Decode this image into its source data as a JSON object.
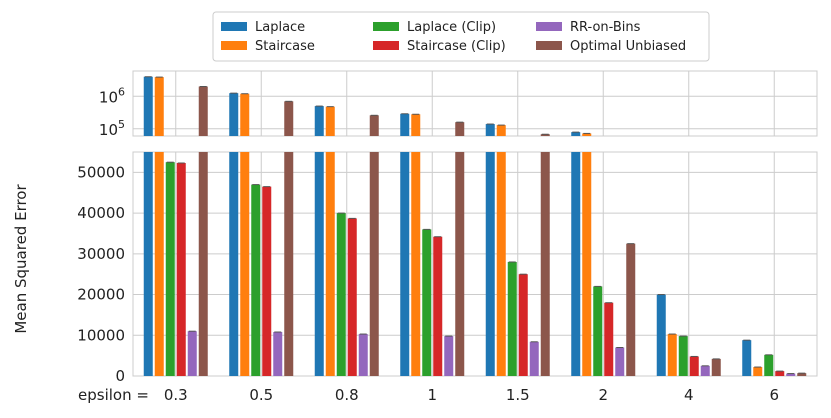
{
  "chart_data": {
    "type": "bar",
    "title": "",
    "xlabel_prefix": "epsilon =",
    "ylabel": "Mean Squared Error",
    "categories": [
      "0.3",
      "0.5",
      "0.8",
      "1",
      "1.5",
      "2",
      "4",
      "6"
    ],
    "series": [
      {
        "name": "Laplace",
        "color": "#1f77b4",
        "values": [
          4000000,
          1250000,
          500000,
          290000,
          140000,
          79000,
          20000,
          8800
        ]
      },
      {
        "name": "Staircase",
        "color": "#ff7f0e",
        "values": [
          3900000,
          1200000,
          480000,
          280000,
          130000,
          72000,
          10300,
          2200
        ]
      },
      {
        "name": "Laplace (Clip)",
        "color": "#2ca02c",
        "values": [
          52500,
          47000,
          40000,
          36000,
          28000,
          22000,
          9800,
          5200
        ]
      },
      {
        "name": "Staircase (Clip)",
        "color": "#d62728",
        "values": [
          52300,
          46500,
          38700,
          34200,
          25000,
          18000,
          4800,
          1200
        ]
      },
      {
        "name": "RR-on-Bins",
        "color": "#9467bd",
        "values": [
          11000,
          10800,
          10300,
          9800,
          8400,
          7000,
          2500,
          600
        ]
      },
      {
        "name": "Optimal Unbiased",
        "color": "#8c564b",
        "values": [
          2000000,
          700000,
          260000,
          160000,
          68000,
          32500,
          4200,
          700
        ]
      }
    ],
    "lower_axis": {
      "ylim": [
        0,
        55000
      ],
      "ticks": [
        0,
        10000,
        20000,
        30000,
        40000,
        50000
      ],
      "tick_labels": [
        "0",
        "10000",
        "20000",
        "30000",
        "40000",
        "50000"
      ]
    },
    "upper_axis": {
      "scale": "log",
      "ylim": [
        60000,
        6000000
      ],
      "ticks": [
        100000,
        1000000
      ],
      "tick_labels": [
        "10^5",
        "10^6"
      ]
    },
    "legend_position": "top-center"
  }
}
